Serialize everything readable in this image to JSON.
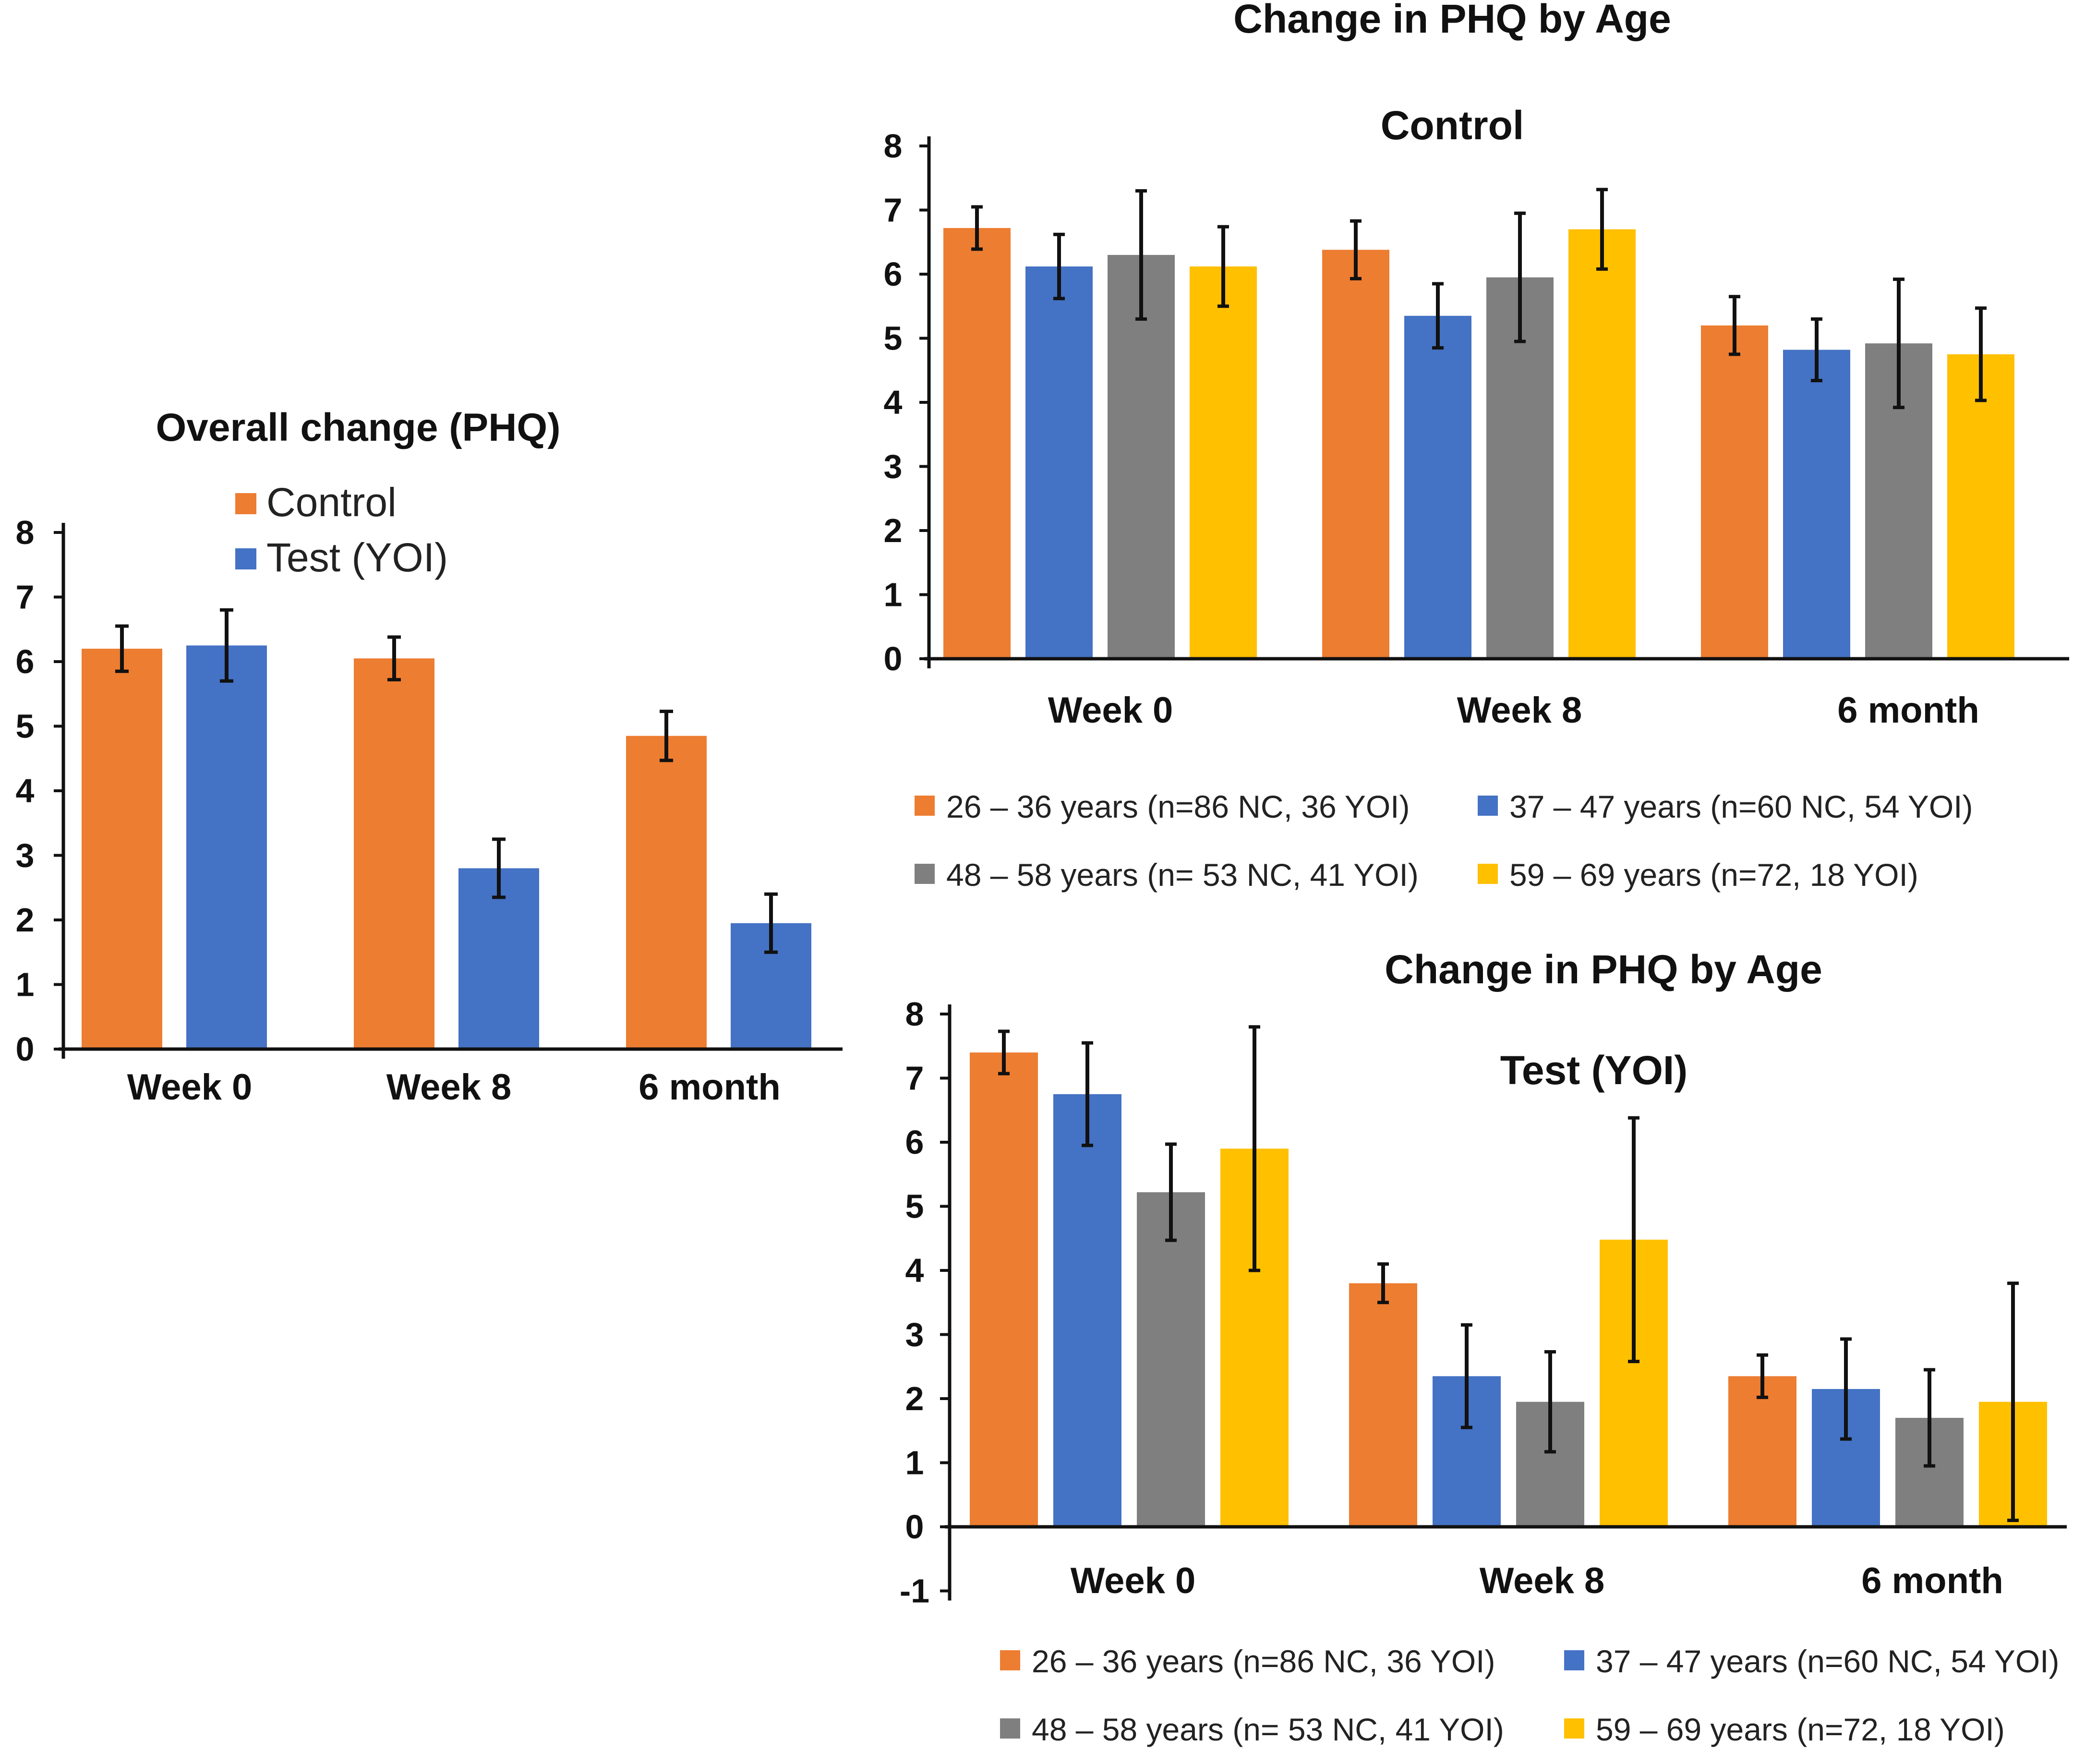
{
  "colors": {
    "orange": "#ED7D31",
    "blue": "#4472C4",
    "gray": "#7F7F7F",
    "yellow": "#FFC000",
    "axis": "#111111",
    "text": "#111111"
  },
  "chart_data": [
    {
      "id": "overall",
      "type": "bar",
      "title": "Overall  change (PHQ)",
      "xlabel": "",
      "ylabel": "",
      "ylim": [
        0,
        8
      ],
      "yticks": [
        0,
        1,
        2,
        3,
        4,
        5,
        6,
        7,
        8
      ],
      "categories": [
        "Week 0",
        "Week 8",
        "6 month"
      ],
      "legend_position": "top-left",
      "series": [
        {
          "name": "Control",
          "color": "#ED7D31",
          "values": [
            6.2,
            6.05,
            4.85
          ],
          "errors": [
            0.35,
            0.33,
            0.38
          ]
        },
        {
          "name": "Test (YOI)",
          "color": "#4472C4",
          "values": [
            6.25,
            2.8,
            1.95
          ],
          "errors": [
            0.55,
            0.45,
            0.45
          ]
        }
      ]
    },
    {
      "id": "control",
      "type": "bar",
      "title": "Change in PHQ by Age",
      "subtitle": "Control",
      "xlabel": "",
      "ylabel": "",
      "ylim": [
        0,
        8
      ],
      "yticks": [
        0,
        1,
        2,
        3,
        4,
        5,
        6,
        7,
        8
      ],
      "categories": [
        "Week 0",
        "Week 8",
        "6 month"
      ],
      "legend_position": "bottom",
      "series": [
        {
          "name": "26 – 36 years (n=86 NC, 36 YOI)",
          "color": "#ED7D31",
          "values": [
            6.72,
            6.38,
            5.2
          ],
          "errors": [
            0.33,
            0.45,
            0.45
          ]
        },
        {
          "name": "37 – 47 years (n=60 NC, 54 YOI)",
          "color": "#4472C4",
          "values": [
            6.12,
            5.35,
            4.82
          ],
          "errors": [
            0.5,
            0.5,
            0.48
          ]
        },
        {
          "name": "48 – 58 years (n= 53 NC, 41 YOI)",
          "color": "#7F7F7F",
          "values": [
            6.3,
            5.95,
            4.92
          ],
          "errors": [
            1.0,
            1.0,
            1.0
          ]
        },
        {
          "name": "59 – 69 years (n=72, 18 YOI)",
          "color": "#FFC000",
          "values": [
            6.12,
            6.7,
            4.75
          ],
          "errors": [
            0.62,
            0.62,
            0.72
          ]
        }
      ]
    },
    {
      "id": "test",
      "type": "bar",
      "title": "Change in PHQ by Age",
      "subtitle": "Test (YOI)",
      "xlabel": "",
      "ylabel": "",
      "ylim": [
        -1,
        8
      ],
      "yticks": [
        -1,
        0,
        1,
        2,
        3,
        4,
        5,
        6,
        7,
        8
      ],
      "categories": [
        "Week 0",
        "Week 8",
        "6 month"
      ],
      "legend_position": "bottom",
      "series": [
        {
          "name": "26 – 36 years (n=86 NC, 36 YOI)",
          "color": "#ED7D31",
          "values": [
            7.4,
            3.8,
            2.35
          ],
          "errors": [
            0.33,
            0.3,
            0.33
          ]
        },
        {
          "name": "37 – 47 years (n=60 NC, 54 YOI)",
          "color": "#4472C4",
          "values": [
            6.75,
            2.35,
            2.15
          ],
          "errors": [
            0.8,
            0.8,
            0.78
          ]
        },
        {
          "name": "48 – 58 years (n= 53 NC, 41 YOI)",
          "color": "#7F7F7F",
          "values": [
            5.22,
            1.95,
            1.7
          ],
          "errors": [
            0.75,
            0.78,
            0.75
          ]
        },
        {
          "name": "59 – 69 years (n=72, 18 YOI)",
          "color": "#FFC000",
          "values": [
            5.9,
            4.48,
            1.95
          ],
          "errors": [
            1.9,
            1.9,
            1.85
          ]
        }
      ]
    }
  ]
}
